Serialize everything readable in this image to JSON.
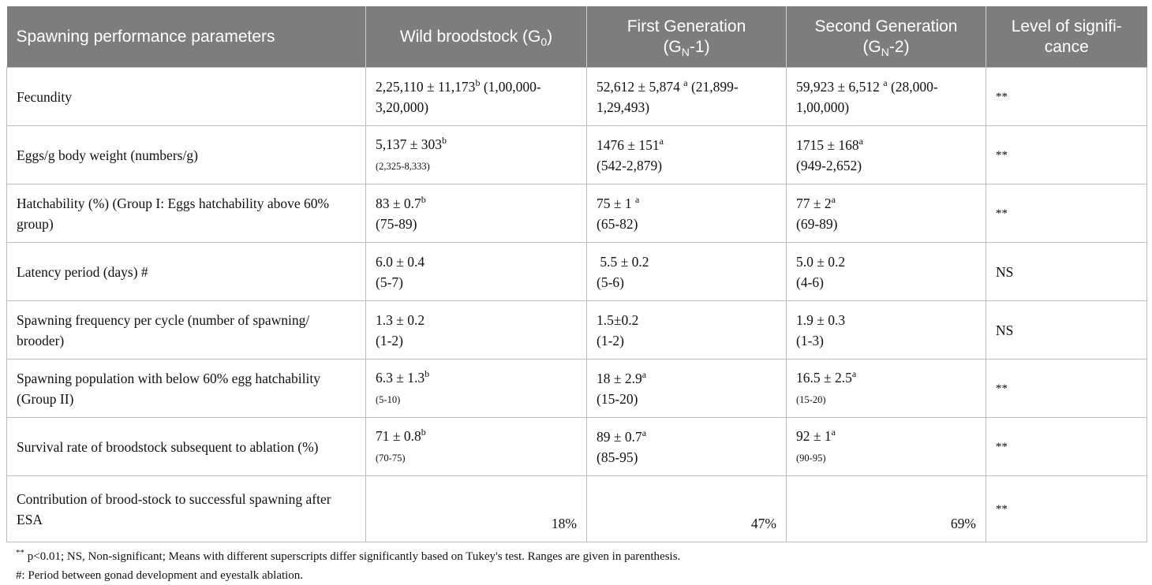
{
  "header": {
    "col1": "Spawning performance parameters",
    "col2_main": "Wild broodstock (G",
    "col2_sub": "0",
    "col2_end": ")",
    "col3_line1": "First Generation",
    "col3_pre": "(G",
    "col3_sub": "N",
    "col3_post": "-1)",
    "col4_line1": "Second Generation",
    "col4_pre": "(G",
    "col4_sub": "N",
    "col4_post": "-2)",
    "col5_line1": "Level of signifi-",
    "col5_line2": "cance"
  },
  "rows": [
    {
      "param": "Fecundity",
      "wild_val": "2,25,110 ± 11,173",
      "wild_sup": "b",
      "wild_range": " (1,00,000-3,20,000)",
      "g1_val": "52,612 ± 5,874 ",
      "g1_sup": "a",
      "g1_range": " (21,899-1,29,493)",
      "g2_val": "59,923 ± 6,512 ",
      "g2_sup": "a",
      "g2_range": " (28,000-1,00,000)",
      "level": "**"
    },
    {
      "param": "Eggs/g body weight (numbers/g)",
      "wild_val": "5,137 ± 303",
      "wild_sup": "b",
      "wild_range": "(2,325-8,333)",
      "g1_val": "1476 ± 151",
      "g1_sup": "a",
      "g1_range": "(542-2,879)",
      "g2_val": "1715 ± 168",
      "g2_sup": "a",
      "g2_range": "(949-2,652)",
      "level": "**"
    },
    {
      "param": "Hatchability (%) (Group I: Eggs hatchability above 60% group)",
      "wild_val": "83 ± 0.7",
      "wild_sup": "b",
      "wild_range": "(75-89)",
      "g1_val": "75 ± 1 ",
      "g1_sup": "a",
      "g1_range": "(65-82)",
      "g2_val": "77 ± 2",
      "g2_sup": "a",
      "g2_range": "(69-89)",
      "level": "**"
    },
    {
      "param": "Latency period (days) #",
      "wild_val": "6.0 ± 0.4",
      "wild_range": "(5-7)",
      "g1_val": " 5.5 ± 0.2",
      "g1_range": "(5-6)",
      "g2_val": "5.0 ± 0.2",
      "g2_range": "(4-6)",
      "level": "NS"
    },
    {
      "param": "Spawning frequency per cycle (number of spawning/ brooder)",
      "wild_val": "1.3 ± 0.2",
      "wild_range": "(1-2)",
      "g1_val": "1.5±0.2",
      "g1_range": "(1-2)",
      "g2_val": "1.9 ± 0.3",
      "g2_range": "(1-3)",
      "level": "NS"
    },
    {
      "param": "Spawning population with below 60% egg hatchability (Group II)",
      "wild_val": "6.3 ± 1.3",
      "wild_sup": "b",
      "wild_range": "(5-10)",
      "g1_val": "18 ± 2.9",
      "g1_sup": "a",
      "g1_range": "(15-20)",
      "g2_val": "16.5 ± 2.5",
      "g2_sup": "a",
      "g2_range": "(15-20)",
      "level": "**"
    },
    {
      "param": "Survival rate of broodstock subsequent to ablation (%)",
      "wild_val": "71 ± 0.8",
      "wild_sup": "b",
      "wild_range": "(70-75)",
      "g1_val": "89 ± 0.7",
      "g1_sup": "a",
      "g1_range": "(85-95)",
      "g2_val": "92 ± 1",
      "g2_sup": "a",
      "g2_range": "(90-95)",
      "level": "**"
    },
    {
      "param": "Contribution of brood-stock to successful spawning after ESA",
      "wild_pct": "18%",
      "g1_pct": "47%",
      "g2_pct": "69%",
      "level": "**"
    }
  ],
  "footnotes": {
    "note1_sup": "**",
    "note1": " p<0.01; NS, Non-significant; Means with different superscripts differ significantly based on Tukey's test. Ranges are given in parenthesis.",
    "note2": "#: Period between gonad development and eyestalk ablation."
  }
}
